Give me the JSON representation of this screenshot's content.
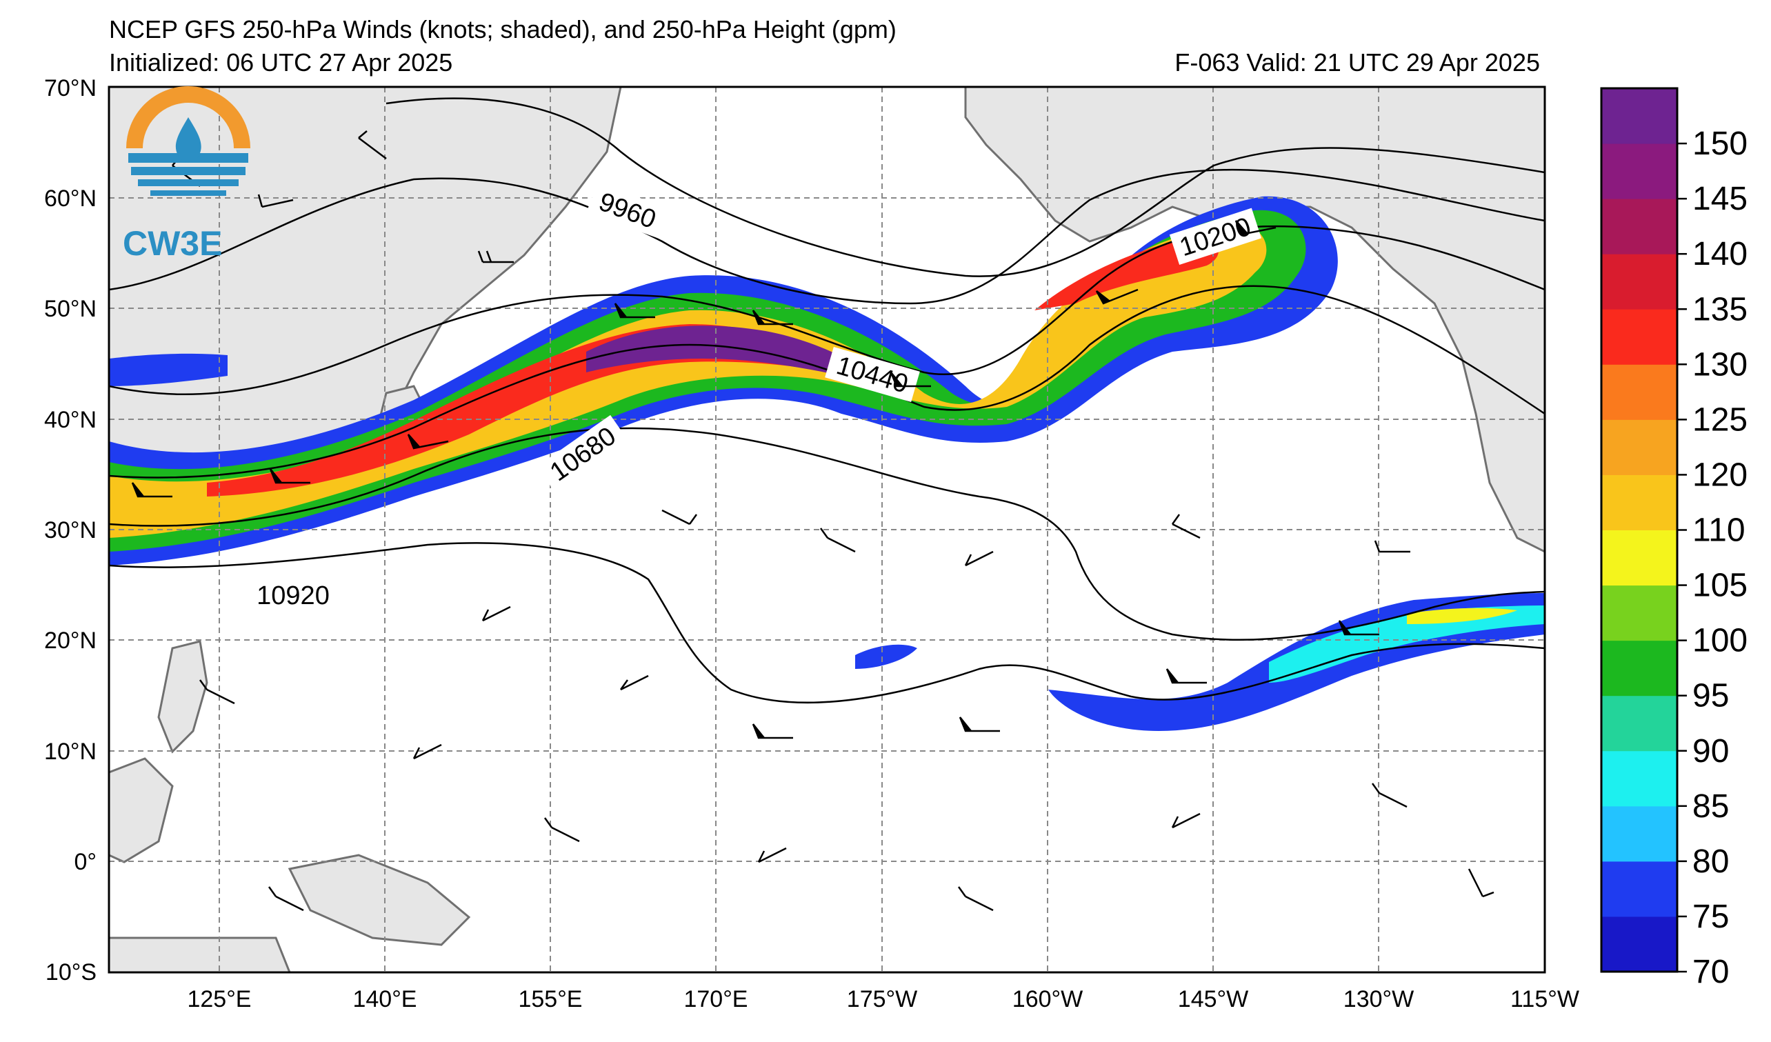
{
  "header": {
    "title": "NCEP GFS 250-hPa Winds (knots; shaded), and 250-hPa Height (gpm)",
    "initialized": "Initialized: 06 UTC 27 Apr 2025",
    "valid": "F-063  Valid: 21 UTC 29 Apr 2025"
  },
  "logo": {
    "text": "CW3E",
    "colors": {
      "orange": "#f29a2e",
      "blue": "#2b8fc4"
    }
  },
  "map": {
    "lat_labels": [
      "70°N",
      "60°N",
      "50°N",
      "40°N",
      "30°N",
      "20°N",
      "10°N",
      "0°",
      "10°S"
    ],
    "lon_labels": [
      "125°E",
      "140°E",
      "155°E",
      "170°E",
      "175°W",
      "160°W",
      "145°W",
      "130°W",
      "115°W"
    ],
    "contour_labels": [
      "9960",
      "10200",
      "10440",
      "10680",
      "10920"
    ],
    "land_color": "#e6e6e6",
    "grid": "dashed gray"
  },
  "colorbar": {
    "title": "",
    "ticks": [
      "70",
      "75",
      "80",
      "85",
      "90",
      "95",
      "100",
      "105",
      "110",
      "120",
      "125",
      "130",
      "135",
      "140",
      "145",
      "150"
    ],
    "bins": [
      {
        "color": "#1818c8"
      },
      {
        "color": "#1f3cf0"
      },
      {
        "color": "#23c3ff"
      },
      {
        "color": "#1df0ef"
      },
      {
        "color": "#23d49a"
      },
      {
        "color": "#1cb81f"
      },
      {
        "color": "#78d21e"
      },
      {
        "color": "#f4f41c"
      },
      {
        "color": "#f9c51b"
      },
      {
        "color": "#f7a420"
      },
      {
        "color": "#fa7a1d"
      },
      {
        "color": "#fa2a1d"
      },
      {
        "color": "#d91c2e"
      },
      {
        "color": "#a81859"
      },
      {
        "color": "#8b1a7e"
      },
      {
        "color": "#6e2391"
      }
    ]
  }
}
